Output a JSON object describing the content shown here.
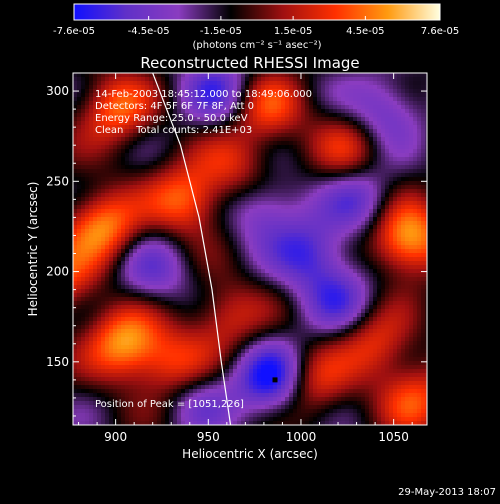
{
  "chart_data": {
    "type": "heatmap",
    "title": "Reconstructed RHESSI Image",
    "xlabel": "Heliocentric X (arcsec)",
    "ylabel": "Heliocentric Y (arcsec)",
    "xlim": [
      877,
      1068
    ],
    "ylim": [
      115,
      310
    ],
    "xticks": [
      900,
      950,
      1000,
      1050
    ],
    "yticks": [
      150,
      200,
      250,
      300
    ],
    "colorbar": {
      "min": -7.6e-05,
      "max": 7.6e-05,
      "tick_values": [
        -7.6e-05,
        -4.5e-05,
        -1.5e-05,
        1.5e-05,
        4.5e-05,
        7.6e-05
      ],
      "tick_labels": [
        "-7.6e-05",
        "-4.5e-05",
        "-1.5e-05",
        "1.5e-05",
        "4.5e-05",
        "7.6e-05"
      ],
      "units_label": "(photons cm⁻² s⁻¹ asec⁻²)",
      "colors": [
        "#1010ff",
        "#6030c8",
        "#8a3cc0",
        "#000000",
        "#a01010",
        "#ff3000",
        "#ff9a10",
        "#ffffe0"
      ]
    },
    "annotations": [
      "14-Feb-2003 18:45:12.000 to 18:49:06.000",
      "Detectors: 4F 5F 6F 7F 8F, Att 0",
      "Energy Range: 25.0 - 50.0 keV",
      "Clean    Total counts: 2.41E+03"
    ],
    "peak_label": "Position of Peak = [1051,226]",
    "peak_position": [
      1051,
      226
    ],
    "limb_curve": [
      [
        920,
        310
      ],
      [
        935,
        270
      ],
      [
        945,
        230
      ],
      [
        952,
        190
      ],
      [
        957,
        150
      ],
      [
        962,
        115
      ]
    ],
    "bright_sources": [
      {
        "x": 1058,
        "y": 218,
        "amp": 1.0
      },
      {
        "x": 905,
        "y": 160,
        "amp": 0.9
      },
      {
        "x": 893,
        "y": 225,
        "amp": 0.85
      },
      {
        "x": 938,
        "y": 240,
        "amp": 0.75
      },
      {
        "x": 982,
        "y": 290,
        "amp": 0.6
      },
      {
        "x": 1040,
        "y": 160,
        "amp": 0.55
      },
      {
        "x": 1005,
        "y": 138,
        "amp": 0.6
      },
      {
        "x": 900,
        "y": 290,
        "amp": 0.7
      },
      {
        "x": 960,
        "y": 175,
        "amp": 0.5
      },
      {
        "x": 1025,
        "y": 268,
        "amp": 0.45
      },
      {
        "x": 932,
        "y": 148,
        "amp": 0.6
      },
      {
        "x": 1062,
        "y": 130,
        "amp": 0.6
      },
      {
        "x": 870,
        "y": 195,
        "amp": 0.6
      },
      {
        "x": 965,
        "y": 258,
        "amp": 0.45
      }
    ],
    "dim_sources": [
      {
        "x": 985,
        "y": 140,
        "amp": -0.9
      },
      {
        "x": 1005,
        "y": 210,
        "amp": -0.6
      },
      {
        "x": 1032,
        "y": 240,
        "amp": -0.5
      },
      {
        "x": 955,
        "y": 300,
        "amp": -0.55
      },
      {
        "x": 980,
        "y": 235,
        "amp": -0.5
      },
      {
        "x": 920,
        "y": 200,
        "amp": -0.45
      },
      {
        "x": 1045,
        "y": 290,
        "amp": -0.5
      },
      {
        "x": 1020,
        "y": 185,
        "amp": -0.5
      },
      {
        "x": 945,
        "y": 130,
        "amp": -0.4
      }
    ]
  },
  "footer": {
    "timestamp": "29-May-2013 18:07"
  }
}
